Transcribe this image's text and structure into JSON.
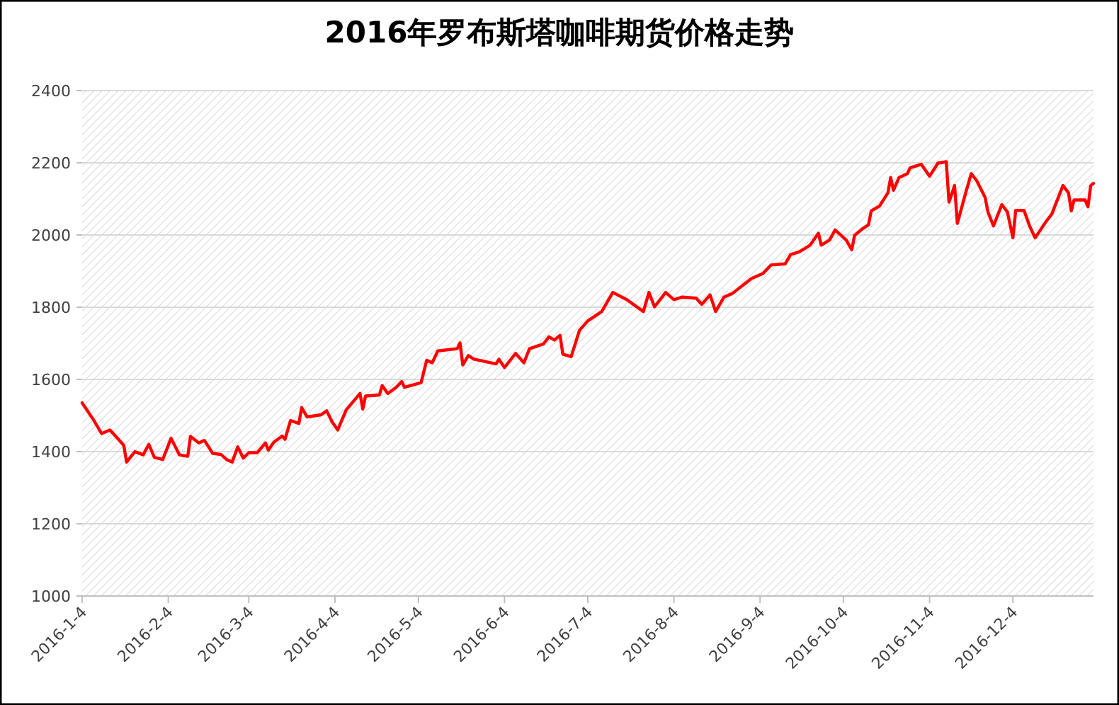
{
  "chart_data": {
    "type": "line",
    "title": "2016年罗布斯塔咖啡期货价格走势",
    "x": [
      "2016-01-04",
      "2016-01-08",
      "2016-01-11",
      "2016-01-14",
      "2016-01-16",
      "2016-01-19",
      "2016-01-20",
      "2016-01-23",
      "2016-01-26",
      "2016-01-28",
      "2016-01-30",
      "2016-02-02",
      "2016-02-05",
      "2016-02-08",
      "2016-02-11",
      "2016-02-12",
      "2016-02-15",
      "2016-02-17",
      "2016-02-20",
      "2016-02-23",
      "2016-02-25",
      "2016-02-27",
      "2016-02-29",
      "2016-03-02",
      "2016-03-04",
      "2016-03-07",
      "2016-03-10",
      "2016-03-11",
      "2016-03-13",
      "2016-03-16",
      "2016-03-17",
      "2016-03-19",
      "2016-03-22",
      "2016-03-23",
      "2016-03-25",
      "2016-03-30",
      "2016-04-01",
      "2016-04-03",
      "2016-04-05",
      "2016-04-08",
      "2016-04-13",
      "2016-04-14",
      "2016-04-15",
      "2016-04-20",
      "2016-04-21",
      "2016-04-23",
      "2016-04-26",
      "2016-04-28",
      "2016-04-29",
      "2016-05-05",
      "2016-05-07",
      "2016-05-09",
      "2016-05-11",
      "2016-05-18",
      "2016-05-19",
      "2016-05-20",
      "2016-05-22",
      "2016-05-24",
      "2016-06-01",
      "2016-06-02",
      "2016-06-04",
      "2016-06-08",
      "2016-06-11",
      "2016-06-13",
      "2016-06-18",
      "2016-06-20",
      "2016-06-22",
      "2016-06-24",
      "2016-06-25",
      "2016-06-28",
      "2016-07-01",
      "2016-07-04",
      "2016-07-09",
      "2016-07-13",
      "2016-07-18",
      "2016-07-24",
      "2016-07-26",
      "2016-07-28",
      "2016-08-01",
      "2016-08-04",
      "2016-08-07",
      "2016-08-12",
      "2016-08-14",
      "2016-08-17",
      "2016-08-19",
      "2016-08-22",
      "2016-08-25",
      "2016-09-01",
      "2016-09-05",
      "2016-09-08",
      "2016-09-13",
      "2016-09-15",
      "2016-09-18",
      "2016-09-20",
      "2016-09-22",
      "2016-09-25",
      "2016-09-26",
      "2016-09-29",
      "2016-10-01",
      "2016-10-05",
      "2016-10-07",
      "2016-10-08",
      "2016-10-11",
      "2016-10-13",
      "2016-10-14",
      "2016-10-17",
      "2016-10-20",
      "2016-10-21",
      "2016-10-22",
      "2016-10-24",
      "2016-10-27",
      "2016-10-28",
      "2016-11-01",
      "2016-11-04",
      "2016-11-07",
      "2016-11-10",
      "2016-11-11",
      "2016-11-13",
      "2016-11-14",
      "2016-11-17",
      "2016-11-19",
      "2016-11-21",
      "2016-11-24",
      "2016-11-25",
      "2016-11-27",
      "2016-11-30",
      "2016-12-02",
      "2016-12-04",
      "2016-12-05",
      "2016-12-08",
      "2016-12-10",
      "2016-12-12",
      "2016-12-16",
      "2016-12-18",
      "2016-12-22",
      "2016-12-24",
      "2016-12-25",
      "2016-12-26",
      "2016-12-30",
      "2016-12-31",
      "2017-01-01",
      "2017-01-02"
    ],
    "series": [
      {
        "color": "#ff0000",
        "values": [
          1535,
          1489,
          1450,
          1460,
          1443,
          1417,
          1371,
          1400,
          1391,
          1420,
          1384,
          1378,
          1437,
          1391,
          1387,
          1442,
          1424,
          1431,
          1395,
          1392,
          1378,
          1371,
          1413,
          1382,
          1397,
          1397,
          1424,
          1404,
          1426,
          1443,
          1434,
          1486,
          1478,
          1522,
          1496,
          1502,
          1513,
          1482,
          1460,
          1515,
          1561,
          1518,
          1554,
          1557,
          1583,
          1561,
          1578,
          1594,
          1578,
          1591,
          1653,
          1646,
          1679,
          1685,
          1701,
          1640,
          1666,
          1656,
          1643,
          1656,
          1633,
          1672,
          1646,
          1685,
          1698,
          1718,
          1709,
          1722,
          1670,
          1663,
          1736,
          1762,
          1788,
          1841,
          1821,
          1788,
          1841,
          1801,
          1841,
          1821,
          1828,
          1825,
          1808,
          1834,
          1788,
          1828,
          1838,
          1880,
          1893,
          1917,
          1920,
          1946,
          1953,
          1962,
          1972,
          2005,
          1972,
          1986,
          2014,
          1986,
          1959,
          1999,
          2018,
          2028,
          2067,
          2080,
          2117,
          2159,
          2124,
          2159,
          2170,
          2186,
          2196,
          2163,
          2199,
          2203,
          2091,
          2137,
          2032,
          2117,
          2170,
          2150,
          2104,
          2064,
          2025,
          2084,
          2064,
          1992,
          2068,
          2068,
          2025,
          1992,
          2038,
          2058,
          2137,
          2117,
          2067,
          2097,
          2097,
          2078,
          2137,
          2143
        ]
      }
    ],
    "xlim": [
      "2016-01-04",
      "2017-01-02"
    ],
    "xticks": [
      {
        "value": "2016-01-04",
        "label": "2016-1-4"
      },
      {
        "value": "2016-02-04",
        "label": "2016-2-4"
      },
      {
        "value": "2016-03-04",
        "label": "2016-3-4"
      },
      {
        "value": "2016-04-04",
        "label": "2016-4-4"
      },
      {
        "value": "2016-05-04",
        "label": "2016-5-4"
      },
      {
        "value": "2016-06-04",
        "label": "2016-6-4"
      },
      {
        "value": "2016-07-04",
        "label": "2016-7-4"
      },
      {
        "value": "2016-08-04",
        "label": "2016-8-4"
      },
      {
        "value": "2016-09-04",
        "label": "2016-9-4"
      },
      {
        "value": "2016-10-04",
        "label": "2016-10-4"
      },
      {
        "value": "2016-11-04",
        "label": "2016-11-4"
      },
      {
        "value": "2016-12-04",
        "label": "2016-12-4"
      }
    ],
    "ylim": [
      1000,
      2400
    ],
    "yticks": [
      1000,
      1200,
      1400,
      1600,
      1800,
      2000,
      2200,
      2400
    ],
    "grid": "y"
  }
}
